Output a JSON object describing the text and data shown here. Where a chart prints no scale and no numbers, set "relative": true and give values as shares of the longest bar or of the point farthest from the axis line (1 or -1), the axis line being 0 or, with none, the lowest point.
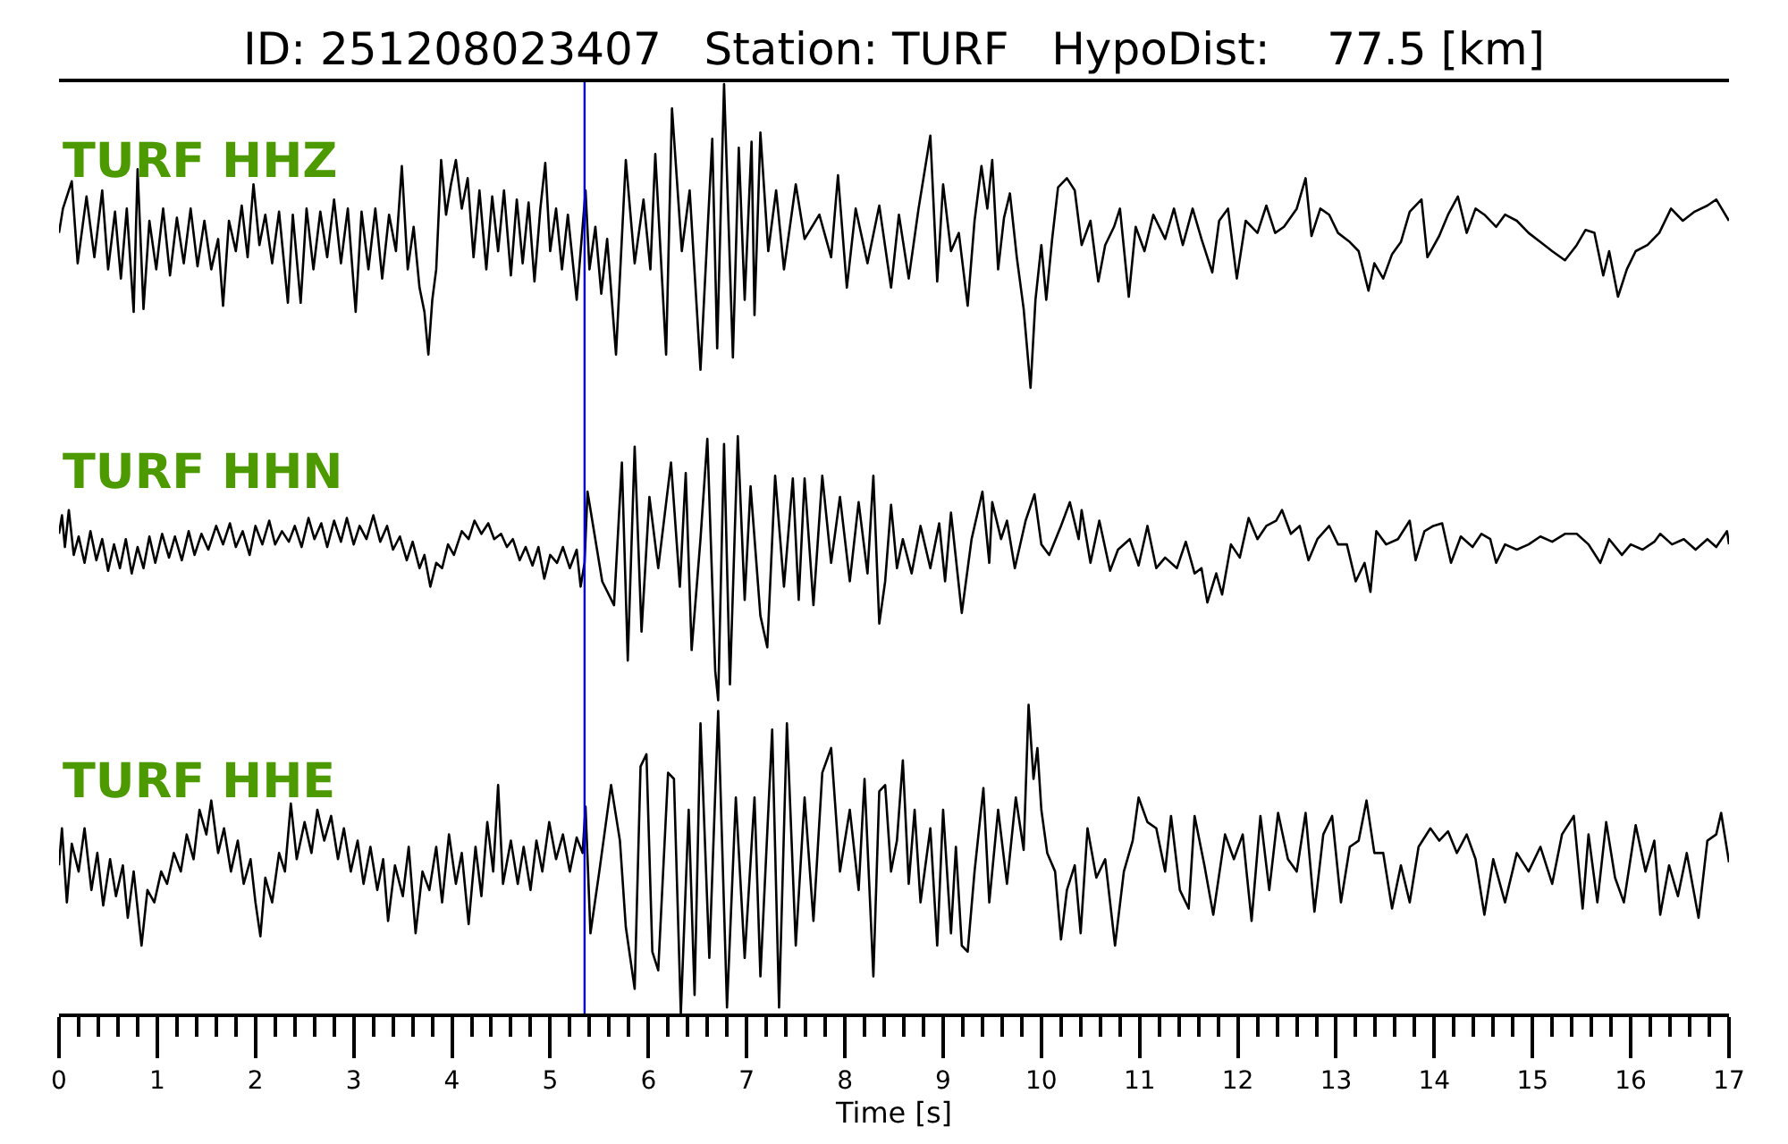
{
  "chart_data": [
    {
      "type": "line",
      "title": "ID: 251208023407   Station: TURF   HypoDist:    77.5 [km]",
      "relative": true,
      "xlim": [
        0,
        17
      ],
      "tick_labels": false,
      "ref_lines": [
        {
          "axis": "x",
          "value": 5.35,
          "color": "#0000ff"
        }
      ],
      "series": [
        {
          "name": "TURF HHZ",
          "color": "#000000",
          "x": [
            0,
            0.04,
            0.13,
            0.19,
            0.28,
            0.36,
            0.44,
            0.5,
            0.57,
            0.63,
            0.69,
            0.76,
            0.8,
            0.86,
            0.92,
            0.99,
            1.06,
            1.13,
            1.2,
            1.27,
            1.34,
            1.41,
            1.48,
            1.55,
            1.62,
            1.67,
            1.73,
            1.8,
            1.86,
            1.92,
            1.98,
            2.04,
            2.1,
            2.17,
            2.24,
            2.33,
            2.38,
            2.46,
            2.52,
            2.59,
            2.66,
            2.73,
            2.8,
            2.87,
            2.94,
            3.02,
            3.08,
            3.15,
            3.22,
            3.29,
            3.36,
            3.43,
            3.49,
            3.55,
            3.61,
            3.67,
            3.72,
            3.76,
            3.8,
            3.84,
            3.89,
            3.94,
            3.99,
            4.04,
            4.1,
            4.16,
            4.22,
            4.28,
            4.35,
            4.41,
            4.47,
            4.53,
            4.6,
            4.66,
            4.72,
            4.78,
            4.84,
            4.9,
            4.95,
            5.0,
            5.06,
            5.12,
            5.18,
            5.27,
            5.33,
            5.36,
            5.4,
            5.46,
            5.52,
            5.58,
            5.67,
            5.77,
            5.86,
            5.95,
            6.02,
            6.07,
            6.18,
            6.24,
            6.34,
            6.42,
            6.53,
            6.65,
            6.7,
            6.77,
            6.86,
            6.92,
            6.98,
            7.05,
            7.08,
            7.14,
            7.22,
            7.3,
            7.38,
            7.5,
            7.59,
            7.74,
            7.86,
            7.93,
            8.02,
            8.11,
            8.23,
            8.35,
            8.47,
            8.55,
            8.65,
            8.75,
            8.87,
            8.94,
            9.0,
            9.08,
            9.16,
            9.25,
            9.32,
            9.39,
            9.45,
            9.5,
            9.56,
            9.62,
            9.68,
            9.75,
            9.82,
            9.89,
            9.94,
            10.0,
            10.05,
            10.11,
            10.17,
            10.26,
            10.34,
            10.41,
            10.5,
            10.58,
            10.65,
            10.74,
            10.8,
            10.89,
            10.96,
            11.05,
            11.14,
            11.26,
            11.35,
            11.44,
            11.54,
            11.63,
            11.74,
            11.81,
            11.9,
            11.99,
            12.08,
            12.2,
            12.29,
            12.38,
            12.47,
            12.6,
            12.69,
            12.75,
            12.84,
            12.93,
            13.02,
            13.14,
            13.23,
            13.33,
            13.39,
            13.48,
            13.57,
            13.66,
            13.75,
            13.87,
            13.93,
            14.05,
            14.14,
            14.24,
            14.33,
            14.42,
            14.51,
            14.63,
            14.72,
            14.84,
            14.96,
            15.08,
            15.2,
            15.33,
            15.45,
            15.54,
            15.63,
            15.72,
            15.78,
            15.87,
            15.96,
            16.05,
            16.17,
            16.29,
            16.41,
            16.53,
            16.65,
            16.78,
            16.87,
            17
          ],
          "values": [
            0.51,
            0.59,
            0.68,
            0.41,
            0.63,
            0.43,
            0.65,
            0.39,
            0.58,
            0.36,
            0.59,
            0.25,
            0.72,
            0.26,
            0.55,
            0.39,
            0.59,
            0.37,
            0.56,
            0.41,
            0.59,
            0.4,
            0.55,
            0.39,
            0.49,
            0.27,
            0.55,
            0.45,
            0.6,
            0.43,
            0.67,
            0.47,
            0.57,
            0.41,
            0.58,
            0.28,
            0.57,
            0.28,
            0.59,
            0.39,
            0.58,
            0.43,
            0.62,
            0.41,
            0.59,
            0.25,
            0.58,
            0.39,
            0.59,
            0.36,
            0.57,
            0.45,
            0.73,
            0.39,
            0.53,
            0.33,
            0.25,
            0.11,
            0.29,
            0.39,
            0.75,
            0.57,
            0.67,
            0.75,
            0.59,
            0.69,
            0.43,
            0.65,
            0.39,
            0.63,
            0.45,
            0.65,
            0.37,
            0.62,
            0.41,
            0.61,
            0.35,
            0.59,
            0.74,
            0.45,
            0.59,
            0.39,
            0.57,
            0.29,
            0.53,
            0.65,
            0.39,
            0.53,
            0.31,
            0.49,
            0.11,
            0.75,
            0.41,
            0.62,
            0.39,
            0.77,
            0.11,
            0.92,
            0.45,
            0.65,
            0.06,
            0.82,
            0.13,
            1,
            0.1,
            0.79,
            0.29,
            0.81,
            0.24,
            0.84,
            0.45,
            0.65,
            0.39,
            0.67,
            0.49,
            0.57,
            0.43,
            0.7,
            0.33,
            0.59,
            0.41,
            0.6,
            0.33,
            0.57,
            0.36,
            0.59,
            0.83,
            0.35,
            0.67,
            0.45,
            0.51,
            0.27,
            0.55,
            0.73,
            0.59,
            0.75,
            0.39,
            0.56,
            0.64,
            0.43,
            0.26,
            0,
            0.29,
            0.47,
            0.29,
            0.49,
            0.66,
            0.69,
            0.65,
            0.47,
            0.55,
            0.35,
            0.47,
            0.53,
            0.59,
            0.3,
            0.53,
            0.45,
            0.57,
            0.49,
            0.59,
            0.47,
            0.59,
            0.49,
            0.38,
            0.55,
            0.59,
            0.36,
            0.55,
            0.51,
            0.6,
            0.51,
            0.53,
            0.59,
            0.69,
            0.5,
            0.59,
            0.57,
            0.51,
            0.48,
            0.45,
            0.32,
            0.41,
            0.36,
            0.44,
            0.48,
            0.58,
            0.62,
            0.43,
            0.5,
            0.57,
            0.63,
            0.51,
            0.59,
            0.57,
            0.53,
            0.57,
            0.55,
            0.51,
            0.48,
            0.45,
            0.42,
            0.47,
            0.52,
            0.51,
            0.37,
            0.45,
            0.3,
            0.39,
            0.45,
            0.47,
            0.51,
            0.59,
            0.55,
            0.58,
            0.6,
            0.62,
            0.55
          ]
        }
      ]
    },
    {
      "type": "line",
      "relative": true,
      "xlim": [
        0,
        17
      ],
      "tick_labels": false,
      "ref_lines": [
        {
          "axis": "x",
          "value": 5.35,
          "color": "#0000ff"
        }
      ],
      "series": [
        {
          "name": "TURF HHN",
          "color": "#000000",
          "x": [
            0,
            0.03,
            0.06,
            0.1,
            0.15,
            0.2,
            0.26,
            0.32,
            0.38,
            0.44,
            0.5,
            0.56,
            0.62,
            0.68,
            0.74,
            0.8,
            0.86,
            0.92,
            0.98,
            1.05,
            1.12,
            1.18,
            1.25,
            1.32,
            1.38,
            1.45,
            1.52,
            1.6,
            1.67,
            1.74,
            1.8,
            1.87,
            1.94,
            2.0,
            2.07,
            2.14,
            2.2,
            2.27,
            2.34,
            2.4,
            2.47,
            2.54,
            2.6,
            2.67,
            2.73,
            2.8,
            2.87,
            2.93,
            3.0,
            3.06,
            3.13,
            3.2,
            3.27,
            3.34,
            3.4,
            3.47,
            3.54,
            3.6,
            3.67,
            3.72,
            3.78,
            3.84,
            3.9,
            3.96,
            4.02,
            4.1,
            4.17,
            4.23,
            4.3,
            4.37,
            4.43,
            4.5,
            4.56,
            4.62,
            4.69,
            4.75,
            4.82,
            4.88,
            4.94,
            5.0,
            5.07,
            5.13,
            5.2,
            5.27,
            5.31,
            5.35,
            5.38,
            5.53,
            5.65,
            5.73,
            5.79,
            5.86,
            5.93,
            6.01,
            6.1,
            6.23,
            6.32,
            6.38,
            6.44,
            6.53,
            6.6,
            6.68,
            6.71,
            6.77,
            6.83,
            6.91,
            6.98,
            7.04,
            7.14,
            7.21,
            7.29,
            7.38,
            7.47,
            7.53,
            7.59,
            7.68,
            7.77,
            7.86,
            7.95,
            8.05,
            8.14,
            8.23,
            8.29,
            8.35,
            8.41,
            8.47,
            8.53,
            8.59,
            8.68,
            8.77,
            8.87,
            8.96,
            9.02,
            9.08,
            9.19,
            9.29,
            9.4,
            9.47,
            9.5,
            9.59,
            9.65,
            9.73,
            9.84,
            9.93,
            10.0,
            10.08,
            10.2,
            10.29,
            10.38,
            10.41,
            10.5,
            10.59,
            10.7,
            10.78,
            10.9,
            10.99,
            11.08,
            11.17,
            11.26,
            11.38,
            11.47,
            11.56,
            11.63,
            11.69,
            11.78,
            11.84,
            11.93,
            12.02,
            12.11,
            12.2,
            12.29,
            12.39,
            12.45,
            12.54,
            12.63,
            12.72,
            12.81,
            12.93,
            13.02,
            13.11,
            13.2,
            13.29,
            13.35,
            13.41,
            13.51,
            13.63,
            13.75,
            13.81,
            13.9,
            13.99,
            14.08,
            14.17,
            14.27,
            14.39,
            14.48,
            14.57,
            14.63,
            14.72,
            14.84,
            14.96,
            15.08,
            15.2,
            15.33,
            15.45,
            15.57,
            15.69,
            15.78,
            15.91,
            16.0,
            16.12,
            16.24,
            16.3,
            16.42,
            16.54,
            16.66,
            16.78,
            16.87,
            16.98,
            17
          ],
          "values": [
            0.63,
            0.7,
            0.58,
            0.72,
            0.55,
            0.62,
            0.52,
            0.64,
            0.53,
            0.61,
            0.49,
            0.59,
            0.5,
            0.61,
            0.48,
            0.58,
            0.5,
            0.62,
            0.52,
            0.63,
            0.54,
            0.62,
            0.53,
            0.64,
            0.55,
            0.63,
            0.57,
            0.66,
            0.59,
            0.67,
            0.58,
            0.64,
            0.55,
            0.66,
            0.59,
            0.68,
            0.59,
            0.64,
            0.6,
            0.66,
            0.58,
            0.69,
            0.61,
            0.67,
            0.58,
            0.68,
            0.6,
            0.69,
            0.59,
            0.66,
            0.61,
            0.7,
            0.6,
            0.66,
            0.57,
            0.62,
            0.53,
            0.6,
            0.5,
            0.55,
            0.43,
            0.52,
            0.5,
            0.59,
            0.55,
            0.64,
            0.61,
            0.68,
            0.63,
            0.67,
            0.61,
            0.63,
            0.58,
            0.61,
            0.53,
            0.58,
            0.51,
            0.58,
            0.46,
            0.55,
            0.52,
            0.58,
            0.5,
            0.57,
            0.43,
            0.52,
            0.79,
            0.45,
            0.36,
            0.9,
            0.15,
            0.96,
            0.26,
            0.77,
            0.5,
            0.9,
            0.43,
            0.86,
            0.19,
            0.61,
            0.99,
            0.11,
            0,
            0.97,
            0.06,
            1,
            0.38,
            0.81,
            0.32,
            0.2,
            0.85,
            0.43,
            0.84,
            0.38,
            0.84,
            0.36,
            0.85,
            0.52,
            0.77,
            0.45,
            0.75,
            0.48,
            0.85,
            0.29,
            0.45,
            0.74,
            0.5,
            0.61,
            0.48,
            0.66,
            0.5,
            0.67,
            0.45,
            0.71,
            0.33,
            0.61,
            0.79,
            0.52,
            0.75,
            0.61,
            0.68,
            0.5,
            0.68,
            0.78,
            0.59,
            0.55,
            0.66,
            0.75,
            0.61,
            0.72,
            0.52,
            0.68,
            0.49,
            0.57,
            0.61,
            0.51,
            0.66,
            0.5,
            0.54,
            0.5,
            0.6,
            0.48,
            0.5,
            0.37,
            0.48,
            0.4,
            0.59,
            0.54,
            0.69,
            0.61,
            0.66,
            0.68,
            0.72,
            0.63,
            0.66,
            0.53,
            0.61,
            0.66,
            0.59,
            0.59,
            0.45,
            0.52,
            0.41,
            0.64,
            0.59,
            0.61,
            0.68,
            0.53,
            0.64,
            0.66,
            0.67,
            0.52,
            0.62,
            0.58,
            0.63,
            0.61,
            0.52,
            0.59,
            0.57,
            0.59,
            0.62,
            0.6,
            0.63,
            0.63,
            0.59,
            0.52,
            0.61,
            0.55,
            0.59,
            0.57,
            0.6,
            0.63,
            0.59,
            0.61,
            0.57,
            0.61,
            0.58,
            0.64,
            0.59
          ]
        }
      ]
    },
    {
      "type": "line",
      "relative": true,
      "xlim": [
        0,
        17
      ],
      "tick_labels": "x",
      "xlabel": "Time [s]",
      "xticks": [
        0,
        {
          "value": 0.2,
          "label": null
        },
        {
          "value": 0.4,
          "label": null
        },
        {
          "value": 0.6,
          "label": null
        },
        {
          "value": 0.8,
          "label": null
        },
        1,
        {
          "value": 1.2,
          "label": null
        },
        {
          "value": 1.4,
          "label": null
        },
        {
          "value": 1.6,
          "label": null
        },
        {
          "value": 1.8,
          "label": null
        },
        2,
        {
          "value": 2.2,
          "label": null
        },
        {
          "value": 2.4,
          "label": null
        },
        {
          "value": 2.6,
          "label": null
        },
        {
          "value": 2.8,
          "label": null
        },
        3,
        {
          "value": 3.2,
          "label": null
        },
        {
          "value": 3.4,
          "label": null
        },
        {
          "value": 3.6,
          "label": null
        },
        {
          "value": 3.8,
          "label": null
        },
        4,
        {
          "value": 4.2,
          "label": null
        },
        {
          "value": 4.4,
          "label": null
        },
        {
          "value": 4.6,
          "label": null
        },
        {
          "value": 4.8,
          "label": null
        },
        5,
        {
          "value": 5.2,
          "label": null
        },
        {
          "value": 5.4,
          "label": null
        },
        {
          "value": 5.6,
          "label": null
        },
        {
          "value": 5.8,
          "label": null
        },
        6,
        {
          "value": 6.2,
          "label": null
        },
        {
          "value": 6.4,
          "label": null
        },
        {
          "value": 6.6,
          "label": null
        },
        {
          "value": 6.8,
          "label": null
        },
        7,
        {
          "value": 7.2,
          "label": null
        },
        {
          "value": 7.4,
          "label": null
        },
        {
          "value": 7.6,
          "label": null
        },
        {
          "value": 7.8,
          "label": null
        },
        8,
        {
          "value": 8.2,
          "label": null
        },
        {
          "value": 8.4,
          "label": null
        },
        {
          "value": 8.6,
          "label": null
        },
        {
          "value": 8.8,
          "label": null
        },
        9,
        {
          "value": 9.2,
          "label": null
        },
        {
          "value": 9.4,
          "label": null
        },
        {
          "value": 9.6,
          "label": null
        },
        {
          "value": 9.8,
          "label": null
        },
        10,
        {
          "value": 10.2,
          "label": null
        },
        {
          "value": 10.4,
          "label": null
        },
        {
          "value": 10.6,
          "label": null
        },
        {
          "value": 10.8,
          "label": null
        },
        11,
        {
          "value": 11.2,
          "label": null
        },
        {
          "value": 11.4,
          "label": null
        },
        {
          "value": 11.6,
          "label": null
        },
        {
          "value": 11.8,
          "label": null
        },
        12,
        {
          "value": 12.2,
          "label": null
        },
        {
          "value": 12.4,
          "label": null
        },
        {
          "value": 12.6,
          "label": null
        },
        {
          "value": 12.8,
          "label": null
        },
        13,
        {
          "value": 13.2,
          "label": null
        },
        {
          "value": 13.4,
          "label": null
        },
        {
          "value": 13.6,
          "label": null
        },
        {
          "value": 13.8,
          "label": null
        },
        14,
        {
          "value": 14.2,
          "label": null
        },
        {
          "value": 14.4,
          "label": null
        },
        {
          "value": 14.6,
          "label": null
        },
        {
          "value": 14.8,
          "label": null
        },
        15,
        {
          "value": 15.2,
          "label": null
        },
        {
          "value": 15.4,
          "label": null
        },
        {
          "value": 15.6,
          "label": null
        },
        {
          "value": 15.8,
          "label": null
        },
        16,
        {
          "value": 16.2,
          "label": null
        },
        {
          "value": 16.4,
          "label": null
        },
        {
          "value": 16.6,
          "label": null
        },
        {
          "value": 16.8,
          "label": null
        },
        17
      ],
      "ref_lines": [
        {
          "axis": "x",
          "value": 5.35,
          "color": "#0000ff"
        }
      ],
      "series": [
        {
          "name": "TURF HHE",
          "color": "#000000",
          "x": [
            0,
            0.03,
            0.08,
            0.13,
            0.2,
            0.26,
            0.33,
            0.39,
            0.45,
            0.52,
            0.58,
            0.65,
            0.7,
            0.76,
            0.84,
            0.9,
            0.97,
            1.04,
            1.1,
            1.17,
            1.24,
            1.3,
            1.37,
            1.43,
            1.5,
            1.55,
            1.62,
            1.68,
            1.75,
            1.82,
            1.88,
            1.95,
            2.0,
            2.05,
            2.1,
            2.17,
            2.24,
            2.3,
            2.36,
            2.42,
            2.5,
            2.57,
            2.63,
            2.7,
            2.77,
            2.84,
            2.9,
            2.97,
            3.04,
            3.1,
            3.17,
            3.24,
            3.3,
            3.35,
            3.42,
            3.5,
            3.56,
            3.63,
            3.7,
            3.77,
            3.84,
            3.9,
            3.97,
            4.04,
            4.1,
            4.17,
            4.24,
            4.3,
            4.36,
            4.42,
            4.47,
            4.52,
            4.6,
            4.67,
            4.73,
            4.8,
            4.86,
            4.92,
            4.99,
            5.06,
            5.13,
            5.2,
            5.27,
            5.33,
            5.36,
            5.41,
            5.5,
            5.62,
            5.71,
            5.77,
            5.86,
            5.92,
            5.98,
            6.04,
            6.1,
            6.2,
            6.26,
            6.33,
            6.41,
            6.47,
            6.53,
            6.62,
            6.71,
            6.8,
            6.89,
            6.98,
            7.08,
            7.14,
            7.26,
            7.33,
            7.41,
            7.5,
            7.59,
            7.68,
            7.77,
            7.86,
            7.95,
            8.05,
            8.14,
            8.2,
            8.29,
            8.35,
            8.41,
            8.47,
            8.53,
            8.59,
            8.65,
            8.71,
            8.77,
            8.87,
            8.94,
            9.0,
            9.08,
            9.13,
            9.19,
            9.25,
            9.32,
            9.41,
            9.47,
            9.56,
            9.65,
            9.74,
            9.82,
            9.87,
            9.92,
            9.96,
            10.0,
            10.06,
            10.14,
            10.2,
            10.26,
            10.34,
            10.4,
            10.47,
            10.56,
            10.65,
            10.75,
            10.84,
            10.93,
            10.99,
            11.08,
            11.17,
            11.26,
            11.32,
            11.41,
            11.5,
            11.56,
            11.66,
            11.75,
            11.87,
            11.96,
            12.05,
            12.14,
            12.23,
            12.32,
            12.41,
            12.51,
            12.6,
            12.69,
            12.78,
            12.87,
            12.96,
            13.05,
            13.14,
            13.23,
            13.31,
            13.39,
            13.48,
            13.57,
            13.66,
            13.75,
            13.84,
            13.96,
            14.05,
            14.14,
            14.23,
            14.33,
            14.42,
            14.51,
            14.6,
            14.72,
            14.84,
            14.96,
            15.08,
            15.2,
            15.3,
            15.42,
            15.51,
            15.57,
            15.66,
            15.75,
            15.84,
            15.93,
            16.05,
            16.15,
            16.24,
            16.3,
            16.39,
            16.48,
            16.57,
            16.69,
            16.78,
            16.87,
            16.92,
            17
          ],
          "values": [
            0.48,
            0.6,
            0.36,
            0.55,
            0.46,
            0.6,
            0.4,
            0.52,
            0.35,
            0.5,
            0.38,
            0.48,
            0.31,
            0.46,
            0.22,
            0.4,
            0.36,
            0.46,
            0.42,
            0.52,
            0.46,
            0.58,
            0.5,
            0.66,
            0.58,
            0.69,
            0.52,
            0.6,
            0.46,
            0.56,
            0.42,
            0.5,
            0.36,
            0.25,
            0.44,
            0.36,
            0.52,
            0.46,
            0.68,
            0.5,
            0.62,
            0.52,
            0.66,
            0.56,
            0.64,
            0.5,
            0.6,
            0.46,
            0.56,
            0.42,
            0.54,
            0.4,
            0.5,
            0.3,
            0.48,
            0.38,
            0.54,
            0.26,
            0.46,
            0.4,
            0.54,
            0.36,
            0.58,
            0.42,
            0.52,
            0.29,
            0.54,
            0.38,
            0.62,
            0.46,
            0.74,
            0.42,
            0.56,
            0.42,
            0.54,
            0.4,
            0.56,
            0.46,
            0.62,
            0.5,
            0.58,
            0.46,
            0.57,
            0.52,
            0.67,
            0.26,
            0.46,
            0.74,
            0.56,
            0.28,
            0.08,
            0.8,
            0.84,
            0.2,
            0.14,
            0.78,
            0.76,
            0,
            0.66,
            0.06,
            0.94,
            0.18,
            0.98,
            0.02,
            0.7,
            0.18,
            0.7,
            0.12,
            0.92,
            0.02,
            0.94,
            0.22,
            0.7,
            0.3,
            0.78,
            0.86,
            0.46,
            0.66,
            0.4,
            0.76,
            0.12,
            0.72,
            0.74,
            0.46,
            0.56,
            0.82,
            0.42,
            0.66,
            0.36,
            0.6,
            0.22,
            0.66,
            0.26,
            0.54,
            0.22,
            0.2,
            0.46,
            0.73,
            0.36,
            0.66,
            0.42,
            0.7,
            0.53,
            1,
            0.76,
            0.86,
            0.66,
            0.52,
            0.46,
            0.24,
            0.4,
            0.48,
            0.26,
            0.6,
            0.44,
            0.5,
            0.22,
            0.46,
            0.56,
            0.7,
            0.62,
            0.6,
            0.46,
            0.64,
            0.4,
            0.34,
            0.64,
            0.48,
            0.32,
            0.58,
            0.5,
            0.58,
            0.3,
            0.64,
            0.4,
            0.65,
            0.5,
            0.46,
            0.65,
            0.33,
            0.58,
            0.64,
            0.36,
            0.54,
            0.56,
            0.69,
            0.52,
            0.52,
            0.34,
            0.48,
            0.36,
            0.54,
            0.6,
            0.56,
            0.59,
            0.52,
            0.58,
            0.5,
            0.32,
            0.5,
            0.36,
            0.52,
            0.46,
            0.54,
            0.42,
            0.58,
            0.64,
            0.34,
            0.58,
            0.36,
            0.62,
            0.44,
            0.36,
            0.61,
            0.46,
            0.56,
            0.32,
            0.48,
            0.38,
            0.52,
            0.31,
            0.56,
            0.58,
            0.65,
            0.49
          ]
        }
      ]
    }
  ]
}
